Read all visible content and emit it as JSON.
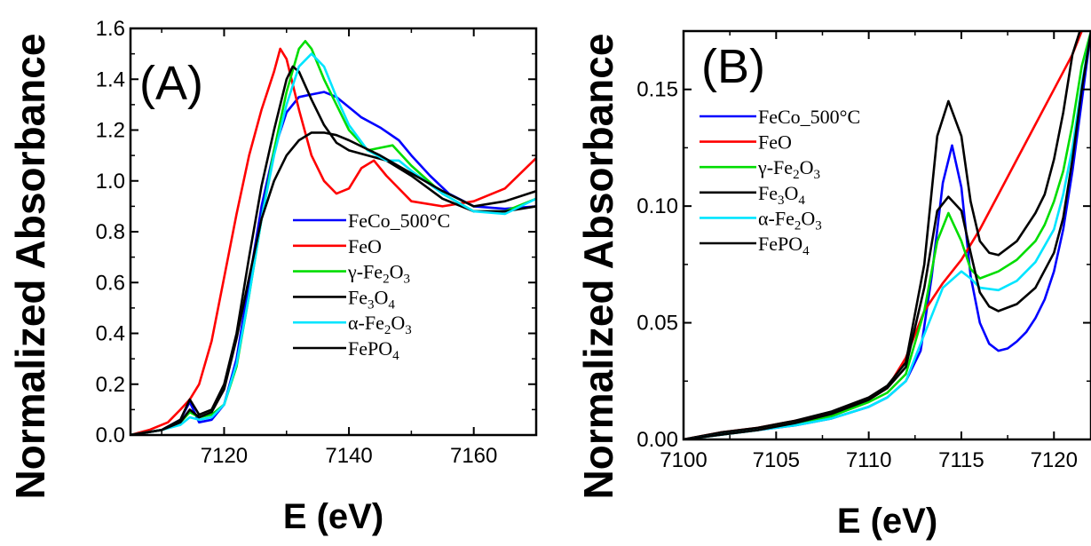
{
  "chart_data": [
    {
      "type": "line",
      "panel_label": "(A)",
      "xlabel": "E (eV)",
      "ylabel": "Normalized Absorbance",
      "xlim": [
        7105,
        7170
      ],
      "ylim": [
        0.0,
        1.6
      ],
      "xticks": [
        7120,
        7140,
        7160
      ],
      "yticks": [
        0.0,
        0.2,
        0.4,
        0.6,
        0.8,
        1.0,
        1.2,
        1.4,
        1.6
      ],
      "ytick_labels": [
        "0.0",
        "0.2",
        "0.4",
        "0.6",
        "0.8",
        "1.0",
        "1.2",
        "1.4",
        "1.6"
      ],
      "xtick_labels": [
        "7120",
        "7140",
        "7160"
      ],
      "legend": "right",
      "series": [
        {
          "name": "FeCo_500°C",
          "name_parts": [
            [
              "FeCo_500°C",
              ""
            ]
          ],
          "color": "#0000ff",
          "x": [
            7105,
            7110,
            7113,
            7114.5,
            7116,
            7118,
            7120,
            7122,
            7124,
            7126,
            7128,
            7130,
            7132,
            7134,
            7136,
            7138,
            7140,
            7142,
            7145,
            7148,
            7150,
            7153,
            7156,
            7160,
            7165,
            7170
          ],
          "y": [
            0.0,
            0.02,
            0.06,
            0.13,
            0.05,
            0.06,
            0.12,
            0.3,
            0.6,
            0.9,
            1.12,
            1.27,
            1.33,
            1.34,
            1.35,
            1.33,
            1.29,
            1.25,
            1.21,
            1.16,
            1.1,
            1.02,
            0.95,
            0.9,
            0.89,
            0.9
          ]
        },
        {
          "name": "FeO",
          "name_parts": [
            [
              "FeO",
              ""
            ]
          ],
          "color": "#ff0000",
          "x": [
            7105,
            7108,
            7111,
            7113,
            7114.5,
            7116,
            7118,
            7120,
            7122,
            7124,
            7126,
            7128,
            7129,
            7130,
            7132,
            7134,
            7136,
            7138,
            7140,
            7142,
            7144,
            7146,
            7150,
            7155,
            7160,
            7165,
            7170
          ],
          "y": [
            0.0,
            0.02,
            0.05,
            0.1,
            0.14,
            0.2,
            0.37,
            0.62,
            0.87,
            1.1,
            1.28,
            1.43,
            1.52,
            1.48,
            1.28,
            1.1,
            1.0,
            0.95,
            0.97,
            1.05,
            1.08,
            1.02,
            0.92,
            0.9,
            0.92,
            0.97,
            1.09
          ]
        },
        {
          "name": "γ-Fe2O3",
          "name_parts": [
            [
              "γ-Fe",
              ""
            ],
            [
              "2",
              "sub"
            ],
            [
              "O",
              ""
            ],
            [
              "3",
              "sub"
            ]
          ],
          "color": "#00dd00",
          "x": [
            7105,
            7110,
            7113,
            7114.5,
            7116,
            7118,
            7120,
            7122,
            7124,
            7126,
            7128,
            7130,
            7132,
            7133,
            7134,
            7136,
            7138,
            7140,
            7143,
            7145,
            7147,
            7150,
            7155,
            7160,
            7165,
            7170
          ],
          "y": [
            0.0,
            0.02,
            0.05,
            0.09,
            0.07,
            0.08,
            0.12,
            0.27,
            0.55,
            0.85,
            1.12,
            1.35,
            1.52,
            1.55,
            1.52,
            1.4,
            1.3,
            1.2,
            1.12,
            1.13,
            1.14,
            1.06,
            0.95,
            0.88,
            0.88,
            0.93
          ]
        },
        {
          "name": "Fe3O4",
          "name_parts": [
            [
              "Fe",
              ""
            ],
            [
              "3",
              "sub"
            ],
            [
              "O",
              ""
            ],
            [
              "4",
              "sub"
            ]
          ],
          "color": "#000000",
          "x": [
            7105,
            7110,
            7113,
            7114.5,
            7116,
            7118,
            7120,
            7122,
            7124,
            7126,
            7128,
            7130,
            7131,
            7132,
            7134,
            7136,
            7138,
            7140,
            7143,
            7146,
            7150,
            7155,
            7160,
            7165,
            7170
          ],
          "y": [
            0.0,
            0.02,
            0.06,
            0.14,
            0.08,
            0.1,
            0.2,
            0.4,
            0.7,
            0.98,
            1.2,
            1.4,
            1.45,
            1.43,
            1.32,
            1.22,
            1.15,
            1.12,
            1.1,
            1.08,
            1.02,
            0.93,
            0.88,
            0.88,
            0.9
          ]
        },
        {
          "name": "α-Fe2O3",
          "name_parts": [
            [
              "α-Fe",
              ""
            ],
            [
              "2",
              "sub"
            ],
            [
              "O",
              ""
            ],
            [
              "3",
              "sub"
            ]
          ],
          "color": "#00e5ff",
          "x": [
            7105,
            7110,
            7113,
            7114.5,
            7116,
            7118,
            7120,
            7122,
            7124,
            7126,
            7128,
            7130,
            7132,
            7134,
            7136,
            7138,
            7140,
            7143,
            7146,
            7148,
            7150,
            7155,
            7160,
            7165,
            7170
          ],
          "y": [
            0.0,
            0.02,
            0.04,
            0.07,
            0.06,
            0.07,
            0.12,
            0.28,
            0.55,
            0.85,
            1.1,
            1.3,
            1.45,
            1.5,
            1.45,
            1.33,
            1.22,
            1.12,
            1.08,
            1.08,
            1.04,
            0.95,
            0.88,
            0.87,
            0.93
          ]
        },
        {
          "name": "FePO4",
          "name_parts": [
            [
              "FePO",
              ""
            ],
            [
              "4",
              "sub"
            ]
          ],
          "color": "#000000",
          "x": [
            7105,
            7110,
            7113,
            7114.5,
            7116,
            7118,
            7120,
            7122,
            7124,
            7126,
            7128,
            7130,
            7132,
            7134,
            7136,
            7138,
            7140,
            7145,
            7150,
            7155,
            7160,
            7165,
            7170
          ],
          "y": [
            0.0,
            0.02,
            0.05,
            0.1,
            0.07,
            0.09,
            0.18,
            0.38,
            0.62,
            0.85,
            1.0,
            1.1,
            1.16,
            1.19,
            1.19,
            1.18,
            1.16,
            1.1,
            1.03,
            0.96,
            0.9,
            0.92,
            0.96
          ]
        }
      ]
    },
    {
      "type": "line",
      "panel_label": "(B)",
      "xlabel": "E (eV)",
      "ylabel": "Normalized Absorbance",
      "xlim": [
        7100,
        7122
      ],
      "ylim": [
        0.0,
        0.175
      ],
      "xticks": [
        7100,
        7105,
        7110,
        7115,
        7120
      ],
      "yticks": [
        0.0,
        0.05,
        0.1,
        0.15
      ],
      "ytick_labels": [
        "0.00",
        "0.05",
        "0.10",
        "0.15"
      ],
      "xtick_labels": [
        "7100",
        "7105",
        "7110",
        "7115",
        "7120"
      ],
      "legend": "top-left",
      "series": [
        {
          "name": "FeCo_500°C",
          "name_parts": [
            [
              "FeCo_500°C",
              ""
            ]
          ],
          "color": "#0000ff",
          "x": [
            7100,
            7102,
            7104,
            7106,
            7108,
            7110,
            7111,
            7112,
            7112.8,
            7113.4,
            7114,
            7114.5,
            7115,
            7115.5,
            7116,
            7116.5,
            7117,
            7117.5,
            7118,
            7118.5,
            7119,
            7119.5,
            7120,
            7120.5,
            7121,
            7121.5,
            7122
          ],
          "y": [
            0.0,
            0.002,
            0.004,
            0.006,
            0.009,
            0.014,
            0.018,
            0.025,
            0.038,
            0.07,
            0.11,
            0.126,
            0.108,
            0.07,
            0.05,
            0.041,
            0.038,
            0.039,
            0.042,
            0.046,
            0.052,
            0.06,
            0.072,
            0.09,
            0.115,
            0.145,
            0.175
          ]
        },
        {
          "name": "FeO",
          "name_parts": [
            [
              "FeO",
              ""
            ]
          ],
          "color": "#ff0000",
          "x": [
            7100,
            7102,
            7104,
            7106,
            7108,
            7110,
            7111,
            7112,
            7113,
            7114,
            7115,
            7116,
            7117,
            7118,
            7119,
            7120,
            7121,
            7121.5
          ],
          "y": [
            0.0,
            0.003,
            0.005,
            0.008,
            0.011,
            0.017,
            0.022,
            0.035,
            0.055,
            0.067,
            0.077,
            0.09,
            0.105,
            0.12,
            0.135,
            0.15,
            0.165,
            0.175
          ]
        },
        {
          "name": "γ-Fe2O3",
          "name_parts": [
            [
              "γ-Fe",
              ""
            ],
            [
              "2",
              "sub"
            ],
            [
              "O",
              ""
            ],
            [
              "3",
              "sub"
            ]
          ],
          "color": "#00dd00",
          "x": [
            7100,
            7102,
            7104,
            7106,
            7108,
            7110,
            7111,
            7112,
            7113,
            7113.7,
            7114.3,
            7115,
            7115.5,
            7116,
            7117,
            7118,
            7119,
            7119.5,
            7120,
            7120.5,
            7121,
            7121.5,
            7122
          ],
          "y": [
            0.0,
            0.002,
            0.004,
            0.007,
            0.01,
            0.016,
            0.02,
            0.028,
            0.055,
            0.085,
            0.097,
            0.085,
            0.073,
            0.069,
            0.072,
            0.077,
            0.085,
            0.092,
            0.102,
            0.115,
            0.135,
            0.16,
            0.175
          ]
        },
        {
          "name": "Fe3O4",
          "name_parts": [
            [
              "Fe",
              ""
            ],
            [
              "3",
              "sub"
            ],
            [
              "O",
              ""
            ],
            [
              "4",
              "sub"
            ]
          ],
          "color": "#000000",
          "x": [
            7100,
            7102,
            7104,
            7106,
            7108,
            7110,
            7111,
            7112,
            7113,
            7113.7,
            7114.3,
            7115,
            7115.5,
            7116,
            7116.5,
            7117,
            7118,
            7119,
            7119.5,
            7120,
            7120.5,
            7121,
            7121.4
          ],
          "y": [
            0.0,
            0.003,
            0.005,
            0.008,
            0.012,
            0.018,
            0.023,
            0.033,
            0.075,
            0.13,
            0.145,
            0.13,
            0.102,
            0.085,
            0.08,
            0.079,
            0.085,
            0.097,
            0.105,
            0.12,
            0.14,
            0.165,
            0.175
          ]
        },
        {
          "name": "α-Fe2O3",
          "name_parts": [
            [
              "α-Fe",
              ""
            ],
            [
              "2",
              "sub"
            ],
            [
              "O",
              ""
            ],
            [
              "3",
              "sub"
            ]
          ],
          "color": "#00e5ff",
          "x": [
            7100,
            7102,
            7104,
            7106,
            7108,
            7110,
            7111,
            7112,
            7113,
            7114,
            7115,
            7115.5,
            7116,
            7117,
            7118,
            7119,
            7120,
            7120.5,
            7121,
            7121.5,
            7122
          ],
          "y": [
            0.0,
            0.002,
            0.004,
            0.006,
            0.009,
            0.014,
            0.018,
            0.025,
            0.045,
            0.065,
            0.072,
            0.069,
            0.065,
            0.064,
            0.068,
            0.076,
            0.09,
            0.105,
            0.125,
            0.152,
            0.175
          ]
        },
        {
          "name": "FePO4",
          "name_parts": [
            [
              "FePO",
              ""
            ],
            [
              "4",
              "sub"
            ]
          ],
          "color": "#000000",
          "x": [
            7100,
            7102,
            7104,
            7106,
            7108,
            7110,
            7111,
            7112,
            7113,
            7113.7,
            7114.3,
            7115,
            7115.5,
            7116,
            7116.5,
            7117,
            7118,
            7119,
            7120,
            7120.5,
            7121,
            7121.5,
            7122
          ],
          "y": [
            0.0,
            0.002,
            0.004,
            0.007,
            0.011,
            0.017,
            0.022,
            0.031,
            0.065,
            0.098,
            0.104,
            0.098,
            0.08,
            0.063,
            0.057,
            0.055,
            0.058,
            0.065,
            0.08,
            0.095,
            0.12,
            0.15,
            0.175
          ]
        }
      ]
    }
  ]
}
